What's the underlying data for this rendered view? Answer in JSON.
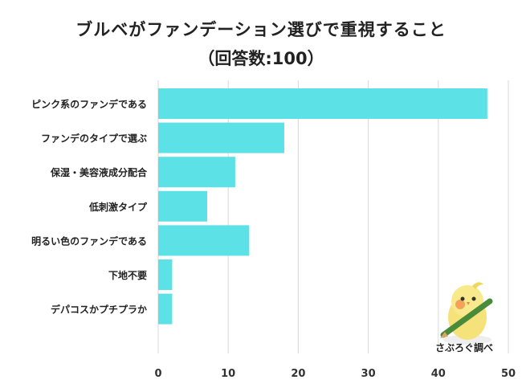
{
  "chart_data": {
    "type": "bar",
    "orientation": "horizontal",
    "title": "ブルベがファンデーション選びで重視すること",
    "subtitle": "（回答数:100）",
    "categories": [
      "ピンク系のファンデである",
      "ファンデのタイプで選ぶ",
      "保湿・美容液成分配合",
      "低刺激タイプ",
      "明るい色のファンデである",
      "下地不要",
      "デパコスかプチプラか"
    ],
    "values": [
      47,
      18,
      11,
      7,
      13,
      2,
      2
    ],
    "xlim": [
      0,
      50
    ],
    "x_ticks": [
      "0",
      "10",
      "20",
      "30",
      "40",
      "50"
    ],
    "bar_color": "#5ce1e6",
    "grid": true
  },
  "branding": {
    "label": "さぶろぐ調べ"
  }
}
